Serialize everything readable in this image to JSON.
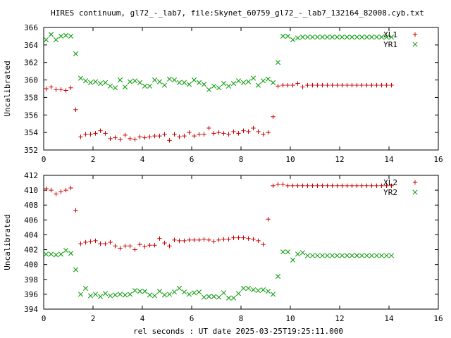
{
  "title": "HIRES continuum, gl72_-_lab7, file:Skynet_60759_gl72_-_lab7_132164_82008.cyb.txt",
  "xlabel": "rel seconds : UT date 2025-03-25T19:25:11.000",
  "colors": {
    "red": "#cc0000",
    "green": "#009900",
    "axis": "#000000"
  },
  "chart_data": [
    {
      "type": "scatter",
      "title": "",
      "xlabel": "",
      "ylabel": "Uncalibrated",
      "xlim": [
        0,
        16
      ],
      "ylim": [
        352,
        366
      ],
      "xticks": [
        0,
        2,
        4,
        6,
        8,
        10,
        12,
        14,
        16
      ],
      "yticks": [
        352,
        354,
        356,
        358,
        360,
        362,
        364,
        366
      ],
      "legend": "top-right",
      "series": [
        {
          "name": "XL1",
          "marker": "plus",
          "color": "#cc0000",
          "x": [
            0.1,
            0.3,
            0.5,
            0.7,
            0.9,
            1.1,
            1.3,
            1.5,
            1.7,
            1.9,
            2.1,
            2.3,
            2.5,
            2.7,
            2.9,
            3.1,
            3.3,
            3.5,
            3.7,
            3.9,
            4.1,
            4.3,
            4.5,
            4.7,
            4.9,
            5.1,
            5.3,
            5.5,
            5.7,
            5.9,
            6.1,
            6.3,
            6.5,
            6.7,
            6.9,
            7.1,
            7.3,
            7.5,
            7.7,
            7.9,
            8.1,
            8.3,
            8.5,
            8.7,
            8.9,
            9.1,
            9.3,
            9.5,
            9.7,
            9.9,
            10.1,
            10.3,
            10.5,
            10.7,
            10.9,
            11.1,
            11.3,
            11.5,
            11.7,
            11.9,
            12.1,
            12.3,
            12.5,
            12.7,
            12.9,
            13.1,
            13.3,
            13.5,
            13.7,
            13.9,
            14.1
          ],
          "y": [
            359.0,
            359.2,
            358.9,
            358.9,
            358.8,
            359.1,
            356.6,
            353.5,
            353.8,
            353.8,
            353.9,
            354.2,
            353.9,
            353.3,
            353.4,
            353.2,
            353.7,
            353.3,
            353.2,
            353.5,
            353.4,
            353.5,
            353.6,
            353.6,
            353.8,
            353.1,
            353.8,
            353.5,
            353.6,
            354.0,
            353.6,
            353.8,
            353.8,
            354.5,
            353.9,
            354.0,
            353.9,
            353.8,
            354.1,
            353.9,
            354.2,
            354.1,
            354.5,
            354.1,
            353.8,
            354.0,
            355.8,
            359.3,
            359.4,
            359.4,
            359.4,
            359.6,
            359.2,
            359.4,
            359.4,
            359.4,
            359.4,
            359.4,
            359.4,
            359.4,
            359.4,
            359.4,
            359.4,
            359.4,
            359.4,
            359.4,
            359.4,
            359.4,
            359.4,
            359.4,
            359.4
          ]
        },
        {
          "name": "YR1",
          "marker": "cross",
          "color": "#009900",
          "x": [
            0.1,
            0.3,
            0.5,
            0.7,
            0.9,
            1.1,
            1.3,
            1.5,
            1.7,
            1.9,
            2.1,
            2.3,
            2.5,
            2.7,
            2.9,
            3.1,
            3.3,
            3.5,
            3.7,
            3.9,
            4.1,
            4.3,
            4.5,
            4.7,
            4.9,
            5.1,
            5.3,
            5.5,
            5.7,
            5.9,
            6.1,
            6.3,
            6.5,
            6.7,
            6.9,
            7.1,
            7.3,
            7.5,
            7.7,
            7.9,
            8.1,
            8.3,
            8.5,
            8.7,
            8.9,
            9.1,
            9.3,
            9.5,
            9.7,
            9.9,
            10.1,
            10.3,
            10.5,
            10.7,
            10.9,
            11.1,
            11.3,
            11.5,
            11.7,
            11.9,
            12.1,
            12.3,
            12.5,
            12.7,
            12.9,
            13.1,
            13.3,
            13.5,
            13.7,
            13.9,
            14.1
          ],
          "y": [
            364.6,
            365.2,
            364.6,
            365.0,
            365.1,
            365.0,
            363.0,
            360.2,
            359.9,
            359.7,
            359.8,
            359.6,
            359.7,
            359.3,
            359.1,
            360.0,
            359.2,
            359.8,
            359.9,
            359.7,
            359.3,
            359.3,
            360.0,
            359.8,
            359.4,
            360.1,
            360.0,
            359.7,
            359.7,
            359.5,
            360.0,
            359.7,
            359.5,
            358.9,
            359.3,
            359.1,
            359.6,
            359.3,
            359.6,
            359.9,
            359.7,
            359.8,
            360.2,
            359.4,
            359.9,
            360.1,
            359.7,
            362.0,
            365.0,
            365.0,
            364.6,
            364.8,
            364.9,
            364.9,
            364.9,
            364.9,
            364.9,
            364.9,
            364.9,
            364.9,
            364.9,
            364.9,
            364.9,
            364.9,
            364.9,
            364.9,
            364.9,
            364.9,
            364.9,
            364.9,
            364.9
          ]
        }
      ]
    },
    {
      "type": "scatter",
      "title": "",
      "xlabel": "rel seconds : UT date 2025-03-25T19:25:11.000",
      "ylabel": "Uncalibrated",
      "xlim": [
        0,
        16
      ],
      "ylim": [
        394,
        412
      ],
      "xticks": [
        0,
        2,
        4,
        6,
        8,
        10,
        12,
        14,
        16
      ],
      "yticks": [
        394,
        396,
        398,
        400,
        402,
        404,
        406,
        408,
        410,
        412
      ],
      "legend": "top-right",
      "series": [
        {
          "name": "XL2",
          "marker": "plus",
          "color": "#cc0000",
          "x": [
            0.1,
            0.3,
            0.5,
            0.7,
            0.9,
            1.1,
            1.3,
            1.5,
            1.7,
            1.9,
            2.1,
            2.3,
            2.5,
            2.7,
            2.9,
            3.1,
            3.3,
            3.5,
            3.7,
            3.9,
            4.1,
            4.3,
            4.5,
            4.7,
            4.9,
            5.1,
            5.3,
            5.5,
            5.7,
            5.9,
            6.1,
            6.3,
            6.5,
            6.7,
            6.9,
            7.1,
            7.3,
            7.5,
            7.7,
            7.9,
            8.1,
            8.3,
            8.5,
            8.7,
            8.9,
            9.1,
            9.3,
            9.5,
            9.7,
            9.9,
            10.1,
            10.3,
            10.5,
            10.7,
            10.9,
            11.1,
            11.3,
            11.5,
            11.7,
            11.9,
            12.1,
            12.3,
            12.5,
            12.7,
            12.9,
            13.1,
            13.3,
            13.5,
            13.7,
            13.9,
            14.1
          ],
          "y": [
            410.2,
            410.0,
            409.5,
            409.8,
            410.0,
            410.3,
            407.3,
            402.8,
            403.0,
            403.1,
            403.2,
            402.8,
            402.8,
            403.0,
            402.5,
            402.2,
            402.5,
            402.5,
            402.0,
            402.7,
            402.4,
            402.6,
            402.6,
            403.5,
            402.9,
            402.5,
            403.3,
            403.2,
            403.2,
            403.3,
            403.3,
            403.3,
            403.4,
            403.3,
            403.1,
            403.3,
            403.4,
            403.4,
            403.6,
            403.6,
            403.6,
            403.5,
            403.4,
            403.2,
            402.7,
            406.1,
            410.6,
            410.8,
            410.8,
            410.6,
            410.6,
            410.6,
            410.6,
            410.6,
            410.6,
            410.6,
            410.6,
            410.6,
            410.6,
            410.6,
            410.6,
            410.6,
            410.6,
            410.6,
            410.6,
            410.6,
            410.6,
            410.6,
            410.6,
            410.6,
            410.6
          ]
        },
        {
          "name": "YR2",
          "marker": "cross",
          "color": "#009900",
          "x": [
            0.1,
            0.3,
            0.5,
            0.7,
            0.9,
            1.1,
            1.3,
            1.5,
            1.7,
            1.9,
            2.1,
            2.3,
            2.5,
            2.7,
            2.9,
            3.1,
            3.3,
            3.5,
            3.7,
            3.9,
            4.1,
            4.3,
            4.5,
            4.7,
            4.9,
            5.1,
            5.3,
            5.5,
            5.7,
            5.9,
            6.1,
            6.3,
            6.5,
            6.7,
            6.9,
            7.1,
            7.3,
            7.5,
            7.7,
            7.9,
            8.1,
            8.3,
            8.5,
            8.7,
            8.9,
            9.1,
            9.3,
            9.5,
            9.7,
            9.9,
            10.1,
            10.3,
            10.5,
            10.7,
            10.9,
            11.1,
            11.3,
            11.5,
            11.7,
            11.9,
            12.1,
            12.3,
            12.5,
            12.7,
            12.9,
            13.1,
            13.3,
            13.5,
            13.7,
            13.9,
            14.1
          ],
          "y": [
            401.4,
            401.4,
            401.3,
            401.4,
            401.9,
            401.5,
            399.3,
            396.0,
            396.8,
            395.8,
            396.0,
            395.7,
            396.1,
            395.8,
            395.9,
            396.0,
            395.9,
            396.0,
            396.5,
            396.4,
            396.4,
            395.9,
            395.8,
            396.4,
            395.9,
            396.0,
            396.3,
            396.8,
            396.3,
            396.0,
            396.2,
            396.3,
            395.6,
            395.7,
            395.7,
            395.6,
            396.2,
            395.5,
            395.5,
            396.1,
            396.8,
            396.8,
            396.6,
            396.5,
            396.6,
            396.4,
            396.0,
            398.4,
            401.7,
            401.7,
            400.6,
            401.4,
            401.6,
            401.2,
            401.2,
            401.2,
            401.2,
            401.2,
            401.2,
            401.2,
            401.2,
            401.2,
            401.2,
            401.2,
            401.2,
            401.2,
            401.2,
            401.2,
            401.2,
            401.2,
            401.2
          ]
        }
      ]
    }
  ]
}
